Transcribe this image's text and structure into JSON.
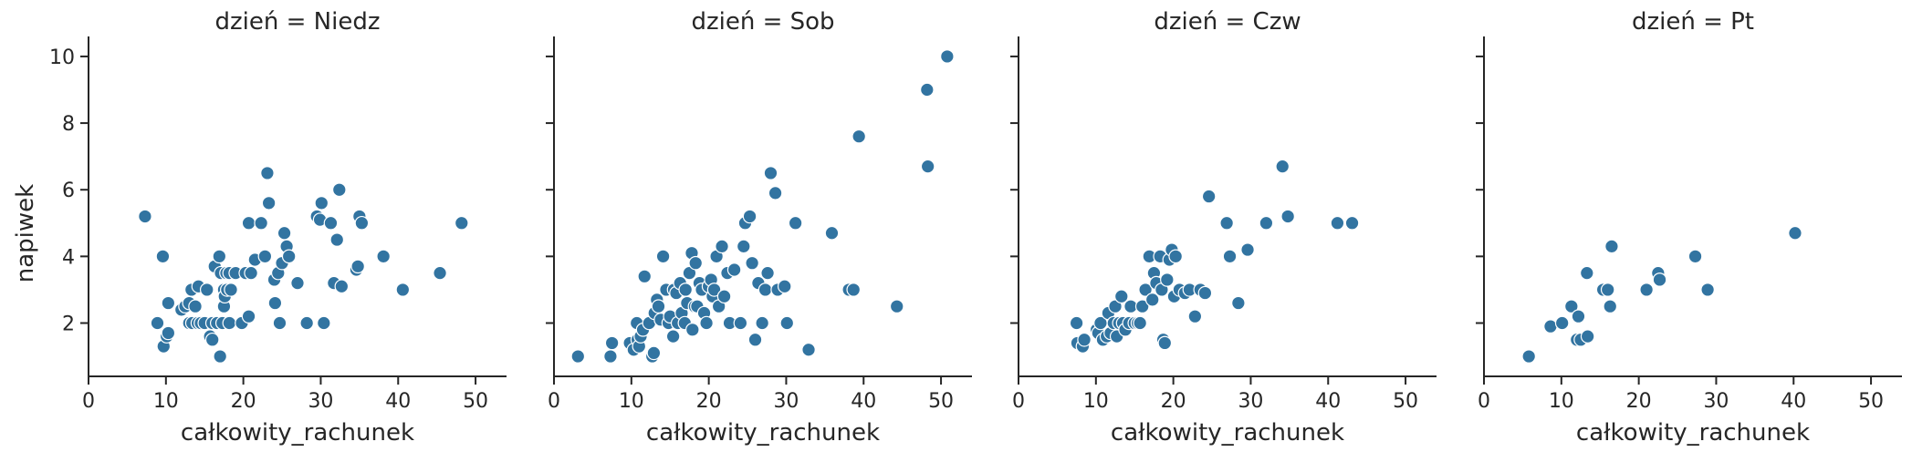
{
  "chart_data": {
    "type": "scatter",
    "xlabel": "całkowity_rachunek",
    "ylabel": "napiwek",
    "xlim": [
      0,
      54
    ],
    "ylim": [
      0.4,
      10.6
    ],
    "xticks": [
      0,
      10,
      20,
      30,
      40,
      50
    ],
    "yticks": [
      2,
      4,
      6,
      8,
      10
    ],
    "grid": false,
    "marker_color": "#3274A1",
    "panels": [
      {
        "title": "dzień = Niedz",
        "points": [
          [
            7.3,
            5.2
          ],
          [
            8.9,
            2.0
          ],
          [
            9.6,
            4.0
          ],
          [
            9.7,
            1.3
          ],
          [
            10.1,
            1.6
          ],
          [
            10.3,
            1.7
          ],
          [
            10.3,
            2.6
          ],
          [
            12.0,
            2.4
          ],
          [
            12.5,
            2.5
          ],
          [
            13.0,
            2.6
          ],
          [
            13.0,
            2.0
          ],
          [
            13.3,
            3.0
          ],
          [
            13.4,
            2.0
          ],
          [
            13.8,
            2.5
          ],
          [
            14.1,
            2.0
          ],
          [
            14.2,
            3.1
          ],
          [
            14.5,
            2.0
          ],
          [
            15.0,
            2.0
          ],
          [
            15.3,
            3.0
          ],
          [
            15.7,
            1.6
          ],
          [
            16.0,
            1.5
          ],
          [
            16.0,
            2.0
          ],
          [
            16.3,
            3.7
          ],
          [
            16.6,
            2.0
          ],
          [
            16.9,
            4.0
          ],
          [
            17.0,
            1.0
          ],
          [
            17.1,
            3.5
          ],
          [
            17.3,
            2.0
          ],
          [
            17.5,
            2.5
          ],
          [
            17.5,
            3.0
          ],
          [
            17.6,
            2.8
          ],
          [
            17.8,
            3.5
          ],
          [
            17.9,
            3.0
          ],
          [
            18.2,
            3.5
          ],
          [
            18.2,
            2.0
          ],
          [
            18.4,
            3.0
          ],
          [
            19.0,
            3.5
          ],
          [
            19.8,
            2.0
          ],
          [
            20.3,
            3.5
          ],
          [
            20.7,
            5.0
          ],
          [
            20.7,
            2.2
          ],
          [
            21.0,
            3.5
          ],
          [
            21.5,
            3.9
          ],
          [
            22.3,
            5.0
          ],
          [
            22.8,
            4.0
          ],
          [
            23.1,
            6.5
          ],
          [
            23.3,
            5.6
          ],
          [
            24.0,
            3.3
          ],
          [
            24.1,
            2.6
          ],
          [
            24.5,
            3.5
          ],
          [
            24.7,
            2.0
          ],
          [
            25.0,
            3.8
          ],
          [
            25.3,
            4.7
          ],
          [
            25.6,
            4.3
          ],
          [
            25.9,
            4.0
          ],
          [
            27.0,
            3.2
          ],
          [
            28.2,
            2.0
          ],
          [
            29.5,
            5.2
          ],
          [
            29.9,
            5.1
          ],
          [
            30.1,
            5.6
          ],
          [
            30.4,
            2.0
          ],
          [
            31.3,
            5.0
          ],
          [
            31.7,
            3.2
          ],
          [
            32.1,
            4.5
          ],
          [
            32.4,
            6.0
          ],
          [
            32.7,
            3.1
          ],
          [
            34.6,
            3.6
          ],
          [
            34.8,
            3.7
          ],
          [
            35.0,
            5.2
          ],
          [
            35.3,
            5.0
          ],
          [
            38.1,
            4.0
          ],
          [
            40.6,
            3.0
          ],
          [
            45.4,
            3.5
          ],
          [
            48.2,
            5.0
          ]
        ]
      },
      {
        "title": "dzień = Sob",
        "points": [
          [
            3.1,
            1.0
          ],
          [
            7.3,
            1.0
          ],
          [
            7.5,
            1.4
          ],
          [
            9.8,
            1.4
          ],
          [
            10.3,
            1.2
          ],
          [
            10.7,
            2.0
          ],
          [
            10.8,
            1.5
          ],
          [
            11.0,
            1.3
          ],
          [
            11.2,
            1.6
          ],
          [
            11.5,
            1.8
          ],
          [
            11.7,
            3.4
          ],
          [
            12.3,
            2.0
          ],
          [
            12.7,
            1.0
          ],
          [
            12.9,
            1.1
          ],
          [
            13.0,
            2.3
          ],
          [
            13.3,
            2.7
          ],
          [
            13.5,
            2.5
          ],
          [
            13.8,
            2.1
          ],
          [
            14.1,
            4.0
          ],
          [
            14.5,
            3.0
          ],
          [
            14.8,
            2.0
          ],
          [
            15.0,
            2.2
          ],
          [
            15.4,
            1.6
          ],
          [
            15.5,
            3.0
          ],
          [
            15.8,
            2.9
          ],
          [
            16.0,
            2.0
          ],
          [
            16.3,
            3.2
          ],
          [
            16.5,
            2.3
          ],
          [
            16.9,
            2.0
          ],
          [
            17.0,
            3.0
          ],
          [
            17.2,
            2.6
          ],
          [
            17.5,
            3.5
          ],
          [
            17.8,
            4.1
          ],
          [
            17.9,
            1.8
          ],
          [
            18.2,
            2.5
          ],
          [
            18.3,
            3.8
          ],
          [
            18.5,
            2.5
          ],
          [
            18.8,
            3.2
          ],
          [
            19.1,
            3.0
          ],
          [
            19.4,
            2.3
          ],
          [
            19.7,
            2.0
          ],
          [
            20.0,
            3.1
          ],
          [
            20.3,
            3.3
          ],
          [
            20.5,
            2.8
          ],
          [
            20.7,
            3.0
          ],
          [
            21.0,
            4.0
          ],
          [
            21.3,
            2.5
          ],
          [
            21.7,
            4.3
          ],
          [
            22.0,
            2.8
          ],
          [
            22.4,
            3.5
          ],
          [
            22.7,
            2.0
          ],
          [
            23.3,
            3.6
          ],
          [
            24.1,
            2.0
          ],
          [
            24.5,
            4.3
          ],
          [
            24.7,
            5.0
          ],
          [
            25.3,
            5.2
          ],
          [
            25.6,
            3.8
          ],
          [
            26.0,
            1.5
          ],
          [
            26.4,
            3.2
          ],
          [
            26.9,
            2.0
          ],
          [
            27.3,
            3.0
          ],
          [
            27.6,
            3.5
          ],
          [
            28.0,
            6.5
          ],
          [
            28.6,
            5.9
          ],
          [
            28.9,
            3.0
          ],
          [
            29.8,
            3.1
          ],
          [
            30.1,
            2.0
          ],
          [
            31.2,
            5.0
          ],
          [
            32.9,
            1.2
          ],
          [
            35.9,
            4.7
          ],
          [
            38.1,
            3.0
          ],
          [
            38.7,
            3.0
          ],
          [
            39.4,
            7.6
          ],
          [
            44.3,
            2.5
          ],
          [
            48.2,
            9.0
          ],
          [
            48.3,
            6.7
          ],
          [
            50.8,
            10.0
          ]
        ]
      },
      {
        "title": "dzień = Czw",
        "points": [
          [
            7.5,
            2.0
          ],
          [
            7.6,
            1.4
          ],
          [
            8.3,
            1.3
          ],
          [
            8.5,
            1.5
          ],
          [
            10.1,
            1.8
          ],
          [
            10.3,
            1.7
          ],
          [
            10.6,
            2.0
          ],
          [
            10.9,
            1.5
          ],
          [
            11.4,
            1.6
          ],
          [
            11.6,
            2.3
          ],
          [
            11.9,
            1.7
          ],
          [
            12.3,
            2.0
          ],
          [
            12.5,
            2.5
          ],
          [
            12.7,
            1.6
          ],
          [
            13.0,
            2.0
          ],
          [
            13.3,
            2.8
          ],
          [
            13.5,
            2.0
          ],
          [
            13.8,
            1.8
          ],
          [
            14.3,
            2.0
          ],
          [
            14.5,
            2.5
          ],
          [
            15.0,
            2.0
          ],
          [
            15.4,
            2.0
          ],
          [
            15.7,
            2.0
          ],
          [
            16.0,
            2.5
          ],
          [
            16.4,
            3.0
          ],
          [
            16.9,
            4.0
          ],
          [
            17.3,
            2.7
          ],
          [
            17.5,
            3.5
          ],
          [
            17.8,
            3.2
          ],
          [
            18.3,
            4.0
          ],
          [
            18.5,
            3.0
          ],
          [
            18.7,
            1.5
          ],
          [
            18.9,
            1.4
          ],
          [
            19.2,
            3.3
          ],
          [
            19.5,
            3.9
          ],
          [
            19.8,
            4.2
          ],
          [
            20.1,
            2.8
          ],
          [
            20.3,
            4.0
          ],
          [
            20.8,
            3.0
          ],
          [
            21.5,
            2.9
          ],
          [
            22.1,
            3.0
          ],
          [
            22.8,
            2.2
          ],
          [
            23.5,
            3.0
          ],
          [
            24.1,
            2.9
          ],
          [
            24.6,
            5.8
          ],
          [
            26.9,
            5.0
          ],
          [
            27.3,
            4.0
          ],
          [
            28.4,
            2.6
          ],
          [
            29.6,
            4.2
          ],
          [
            32.0,
            5.0
          ],
          [
            34.1,
            6.7
          ],
          [
            34.8,
            5.2
          ],
          [
            41.2,
            5.0
          ],
          [
            43.1,
            5.0
          ]
        ]
      },
      {
        "title": "dzień = Pt",
        "points": [
          [
            5.8,
            1.0
          ],
          [
            8.6,
            1.9
          ],
          [
            10.1,
            2.0
          ],
          [
            11.3,
            2.5
          ],
          [
            12.0,
            1.5
          ],
          [
            12.2,
            2.2
          ],
          [
            12.5,
            1.5
          ],
          [
            13.3,
            3.5
          ],
          [
            13.4,
            1.6
          ],
          [
            15.4,
            3.0
          ],
          [
            16.0,
            3.0
          ],
          [
            16.3,
            2.5
          ],
          [
            16.5,
            4.3
          ],
          [
            21.0,
            3.0
          ],
          [
            22.5,
            3.5
          ],
          [
            22.7,
            3.3
          ],
          [
            27.3,
            4.0
          ],
          [
            28.9,
            3.0
          ],
          [
            40.2,
            4.7
          ]
        ]
      }
    ]
  }
}
